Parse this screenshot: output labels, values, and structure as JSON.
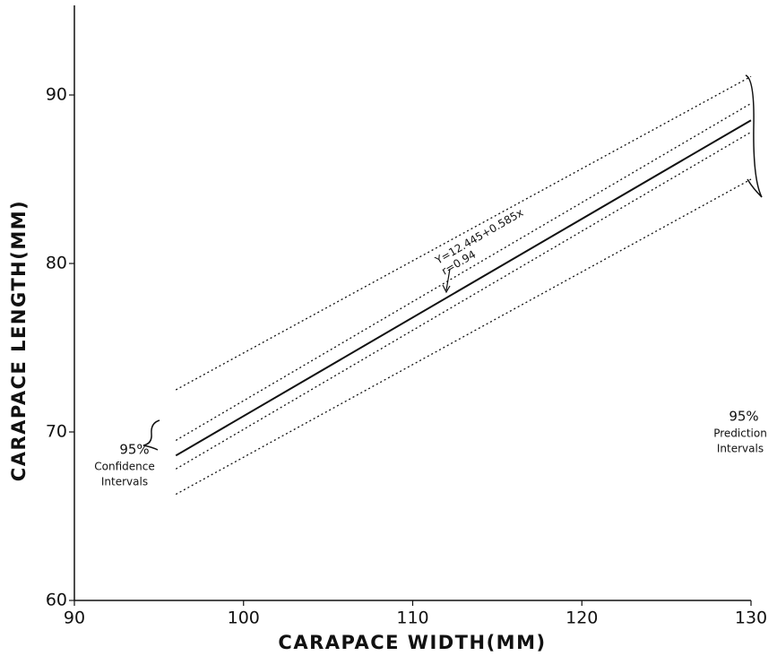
{
  "chart_data": {
    "type": "line",
    "x_label": "CARAPACE WIDTH(MM)",
    "y_label": "CARAPACE LENGTH(MM)",
    "x": [
      96,
      130
    ],
    "series": [
      {
        "color": "#111111",
        "style": "solid",
        "values": [
          68.6,
          88.5
        ]
      },
      {
        "color": "#111111",
        "style": "dotted",
        "values": [
          69.5,
          89.5
        ]
      },
      {
        "color": "#111111",
        "style": "dotted",
        "values": [
          67.8,
          87.8
        ]
      },
      {
        "color": "#111111",
        "style": "dotted",
        "values": [
          72.5,
          91.1
        ]
      },
      {
        "color": "#111111",
        "style": "dotted",
        "values": [
          66.3,
          85.0
        ]
      }
    ],
    "xlim": [
      90,
      130
    ],
    "xticks": [
      90,
      100,
      110,
      120,
      130
    ],
    "ylim": [
      60,
      95
    ],
    "yticks": [
      60,
      70,
      80,
      90
    ],
    "grid": false,
    "annotations": {
      "equation": "Y=12.445+0.585x",
      "r": "r=0.94",
      "confidence": {
        "percent": "95%",
        "lines": [
          "Confidence",
          "Intervals"
        ]
      },
      "prediction": {
        "percent": "95%",
        "lines": [
          "Prediction",
          "Intervals"
        ]
      }
    }
  }
}
